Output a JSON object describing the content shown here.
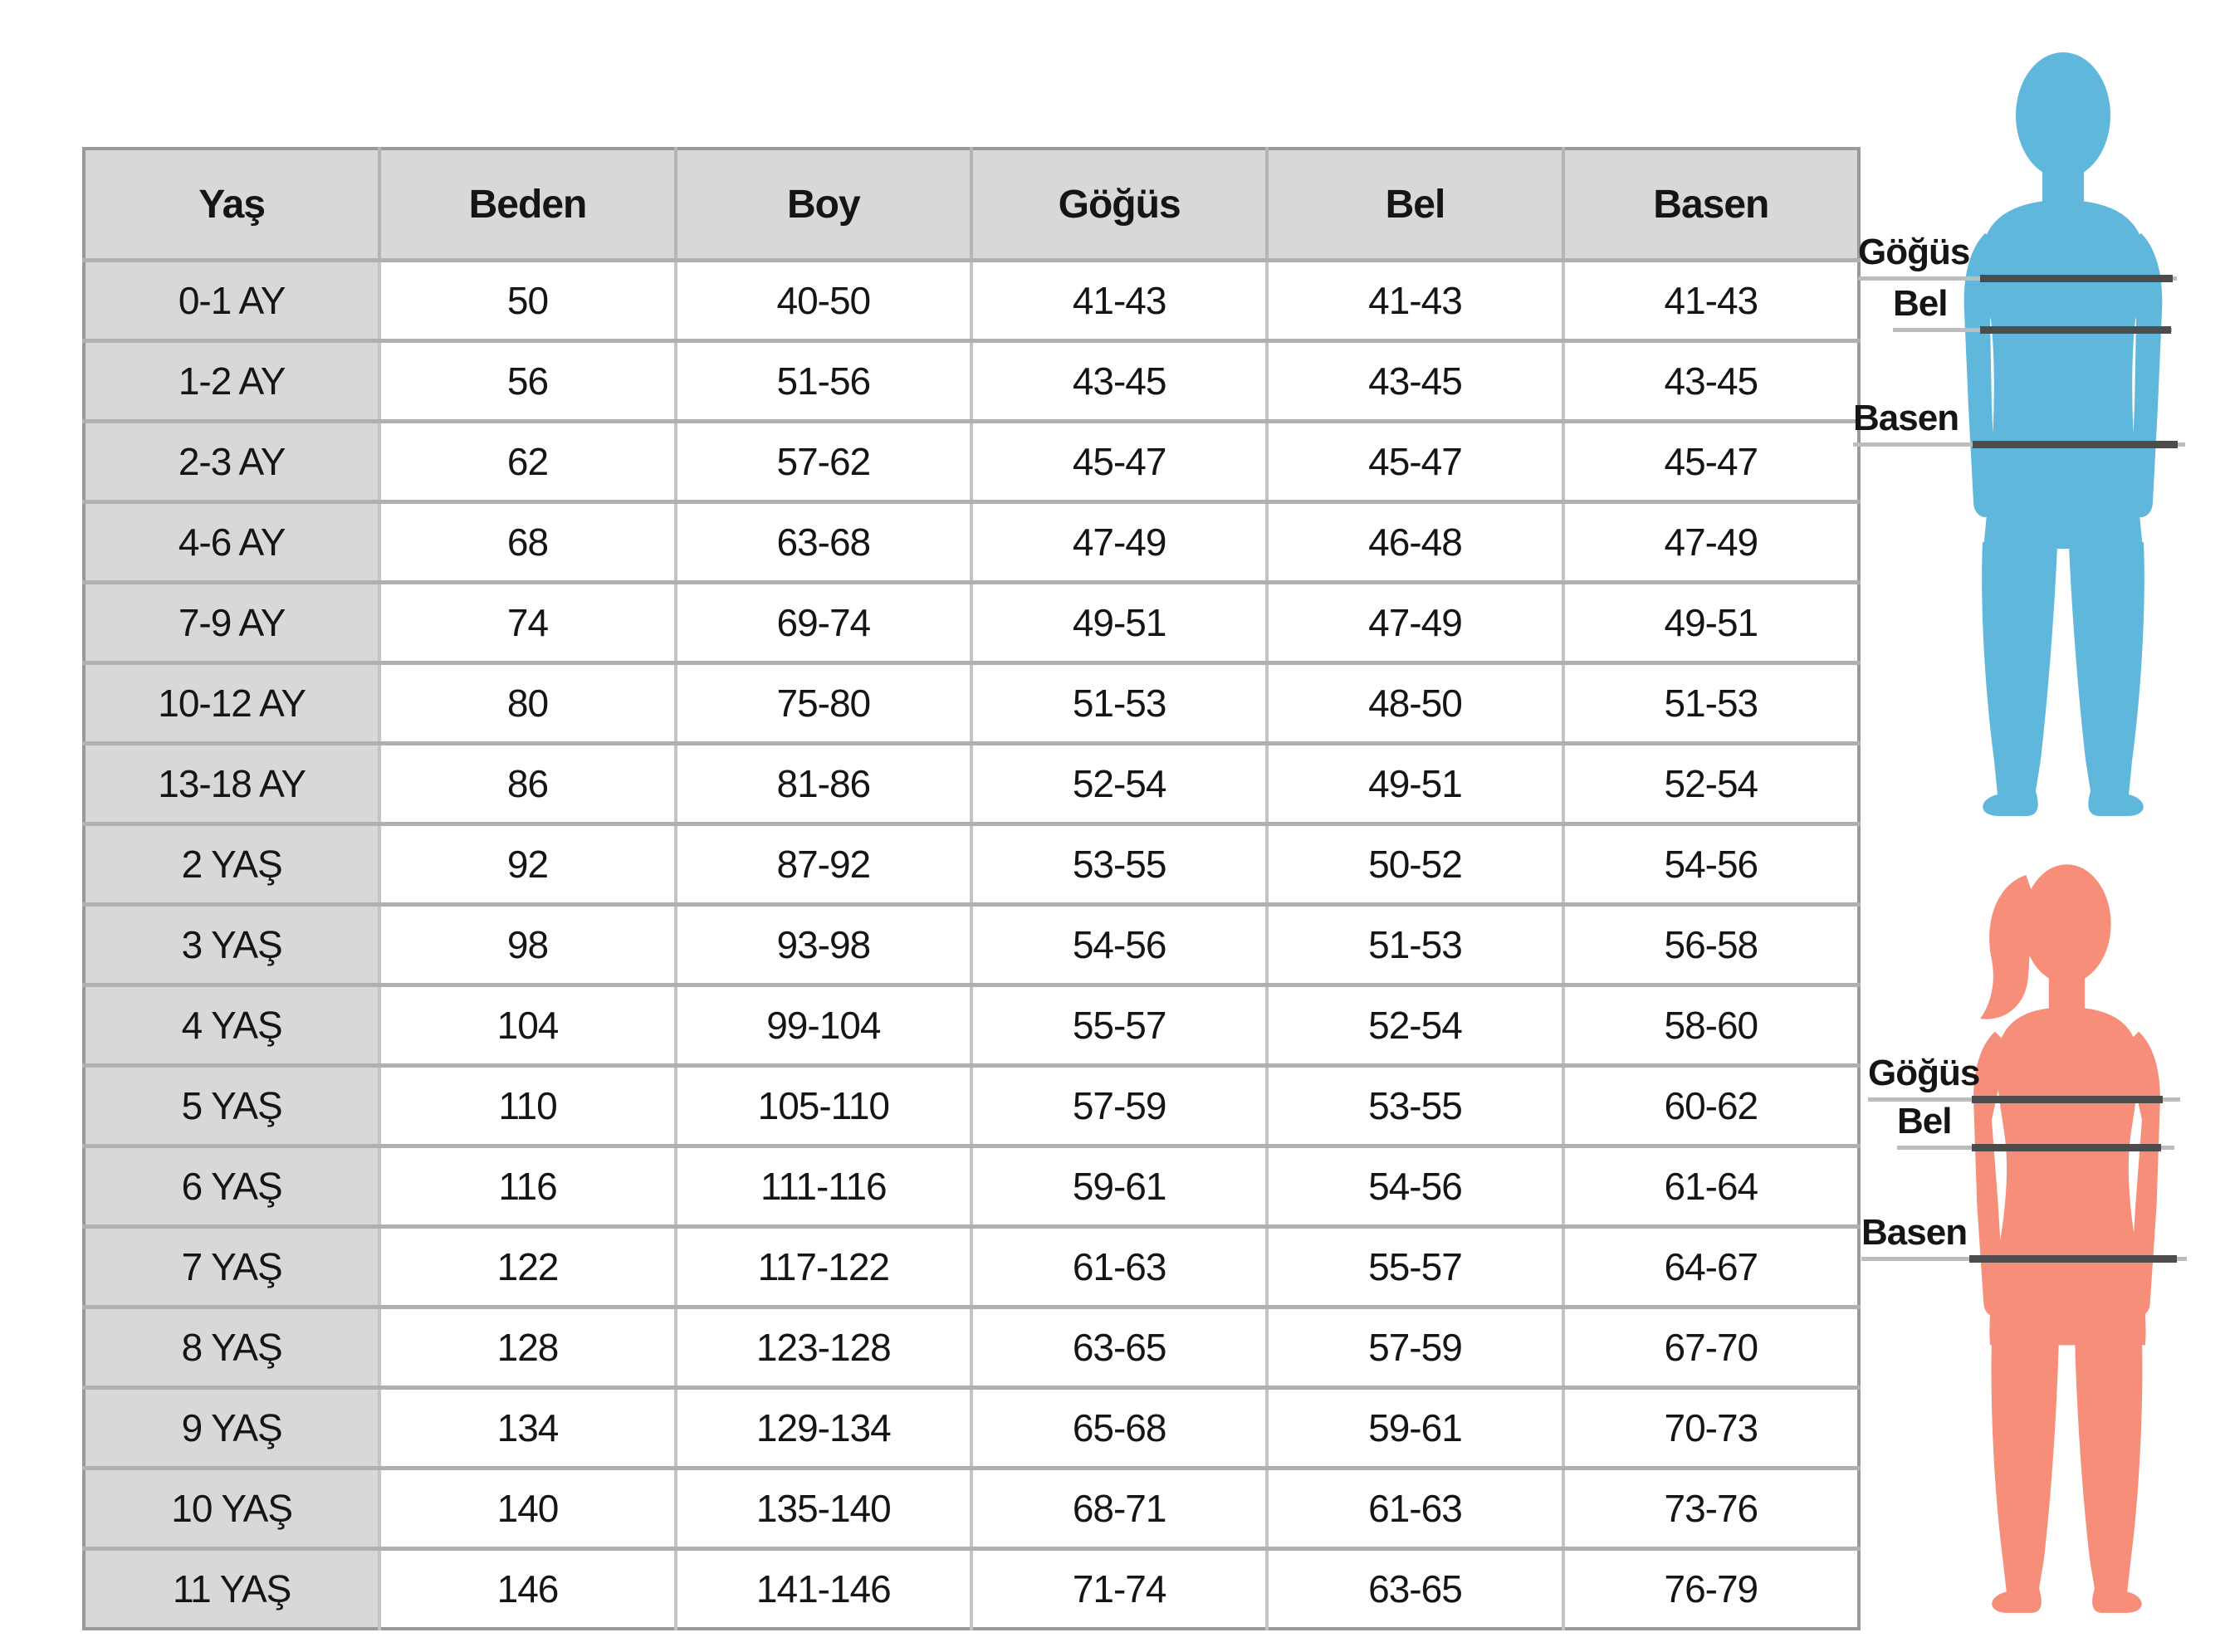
{
  "chart_data": {
    "type": "table",
    "columns": [
      "Yaş",
      "Beden",
      "Boy",
      "Göğüs",
      "Bel",
      "Basen"
    ],
    "rows": [
      [
        "0-1 AY",
        "50",
        "40-50",
        "41-43",
        "41-43",
        "41-43"
      ],
      [
        "1-2 AY",
        "56",
        "51-56",
        "43-45",
        "43-45",
        "43-45"
      ],
      [
        "2-3 AY",
        "62",
        "57-62",
        "45-47",
        "45-47",
        "45-47"
      ],
      [
        "4-6 AY",
        "68",
        "63-68",
        "47-49",
        "46-48",
        "47-49"
      ],
      [
        "7-9 AY",
        "74",
        "69-74",
        "49-51",
        "47-49",
        "49-51"
      ],
      [
        "10-12 AY",
        "80",
        "75-80",
        "51-53",
        "48-50",
        "51-53"
      ],
      [
        "13-18 AY",
        "86",
        "81-86",
        "52-54",
        "49-51",
        "52-54"
      ],
      [
        "2 YAŞ",
        "92",
        "87-92",
        "53-55",
        "50-52",
        "54-56"
      ],
      [
        "3 YAŞ",
        "98",
        "93-98",
        "54-56",
        "51-53",
        "56-58"
      ],
      [
        "4 YAŞ",
        "104",
        "99-104",
        "55-57",
        "52-54",
        "58-60"
      ],
      [
        "5 YAŞ",
        "110",
        "105-110",
        "57-59",
        "53-55",
        "60-62"
      ],
      [
        "6 YAŞ",
        "116",
        "111-116",
        "59-61",
        "54-56",
        "61-64"
      ],
      [
        "7 YAŞ",
        "122",
        "117-122",
        "61-63",
        "55-57",
        "64-67"
      ],
      [
        "8 YAŞ",
        "128",
        "123-128",
        "63-65",
        "57-59",
        "67-70"
      ],
      [
        "9 YAŞ",
        "134",
        "129-134",
        "65-68",
        "59-61",
        "70-73"
      ],
      [
        "10 YAŞ",
        "140",
        "135-140",
        "68-71",
        "61-63",
        "73-76"
      ],
      [
        "11 YAŞ",
        "146",
        "141-146",
        "71-74",
        "63-65",
        "76-79"
      ]
    ]
  },
  "figures": {
    "boy": {
      "color": "#5fb8dc",
      "labels": [
        "Göğüs",
        "Bel",
        "Basen"
      ]
    },
    "girl": {
      "color": "#f68e79",
      "labels": [
        "Göğüs",
        "Bel",
        "Basen"
      ]
    }
  },
  "colors": {
    "header_bg": "#d8d8d8",
    "age_column_bg": "#d8d8d8",
    "grid_horizontal": "#b0b0b0",
    "grid_vertical": "#c3c3c3",
    "table_border": "#999999",
    "text": "#151515",
    "measure_line_light": "#bdbdbd",
    "measure_line_dark": "#4c4c4c",
    "boy_silhouette": "#5fb8dc",
    "girl_silhouette": "#f68e79"
  }
}
